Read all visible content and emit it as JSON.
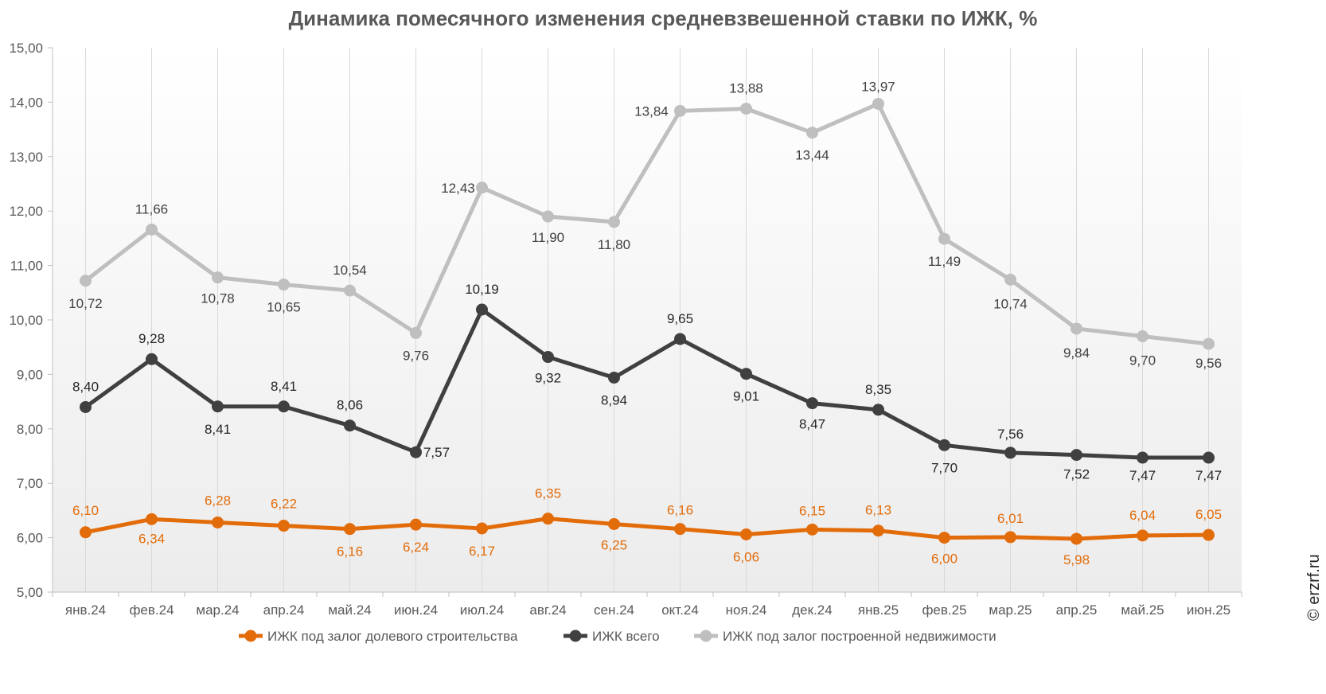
{
  "chart_data": {
    "type": "line",
    "title": "Динамика помесячного изменения средневзвешенной ставки по ИЖК, %",
    "categories": [
      "янв.24",
      "фев.24",
      "мар.24",
      "апр.24",
      "май.24",
      "июн.24",
      "июл.24",
      "авг.24",
      "сен.24",
      "окт.24",
      "ноя.24",
      "дек.24",
      "янв.25",
      "фев.25",
      "мар.25",
      "апр.25",
      "май.25",
      "июн.25"
    ],
    "ylim": [
      5,
      15
    ],
    "y_ticks": [
      "5,00",
      "6,00",
      "7,00",
      "8,00",
      "9,00",
      "10,00",
      "11,00",
      "12,00",
      "13,00",
      "14,00",
      "15,00"
    ],
    "grid": "vertical",
    "legend_position": "bottom",
    "series": [
      {
        "name": "ИЖК под залог долевого строительства",
        "color": "#E36C0A",
        "values": [
          6.1,
          6.34,
          6.28,
          6.22,
          6.16,
          6.24,
          6.17,
          6.35,
          6.25,
          6.16,
          6.06,
          6.15,
          6.13,
          6.0,
          6.01,
          5.98,
          6.04,
          6.05
        ],
        "labels": [
          "6,10",
          "6,34",
          "6,28",
          "6,22",
          "6,16",
          "6,24",
          "6,17",
          "6,35",
          "6,25",
          "6,16",
          "6,06",
          "6,15",
          "6,13",
          "6,00",
          "6,01",
          "5,98",
          "6,04",
          "6,05"
        ]
      },
      {
        "name": "ИЖК всего",
        "color": "#404040",
        "values": [
          8.4,
          9.28,
          8.41,
          8.41,
          8.06,
          7.57,
          10.19,
          9.32,
          8.94,
          9.65,
          9.01,
          8.47,
          8.35,
          7.7,
          7.56,
          7.52,
          7.47,
          7.47
        ],
        "labels": [
          "8,40",
          "9,28",
          "8,41",
          "8,41",
          "8,06",
          "7,57",
          "10,19",
          "9,32",
          "8,94",
          "9,65",
          "9,01",
          "8,47",
          "8,35",
          "7,70",
          "7,56",
          "7,52",
          "7,47",
          "7,47"
        ]
      },
      {
        "name": "ИЖК под залог построенной недвижимости",
        "color": "#BFBFBF",
        "values": [
          10.72,
          11.66,
          10.78,
          10.65,
          10.54,
          9.76,
          12.43,
          11.9,
          11.8,
          13.84,
          13.88,
          13.44,
          13.97,
          11.49,
          10.74,
          9.84,
          9.7,
          9.56
        ],
        "labels": [
          "10,72",
          "11,66",
          "10,78",
          "10,65",
          "10,54",
          "9,76",
          "12,43",
          "11,90",
          "11,80",
          "13,84",
          "13,88",
          "13,44",
          "13,97",
          "11,49",
          "10,74",
          "9,84",
          "9,70",
          "9,56"
        ]
      }
    ]
  },
  "watermark": "© erzrf.ru"
}
